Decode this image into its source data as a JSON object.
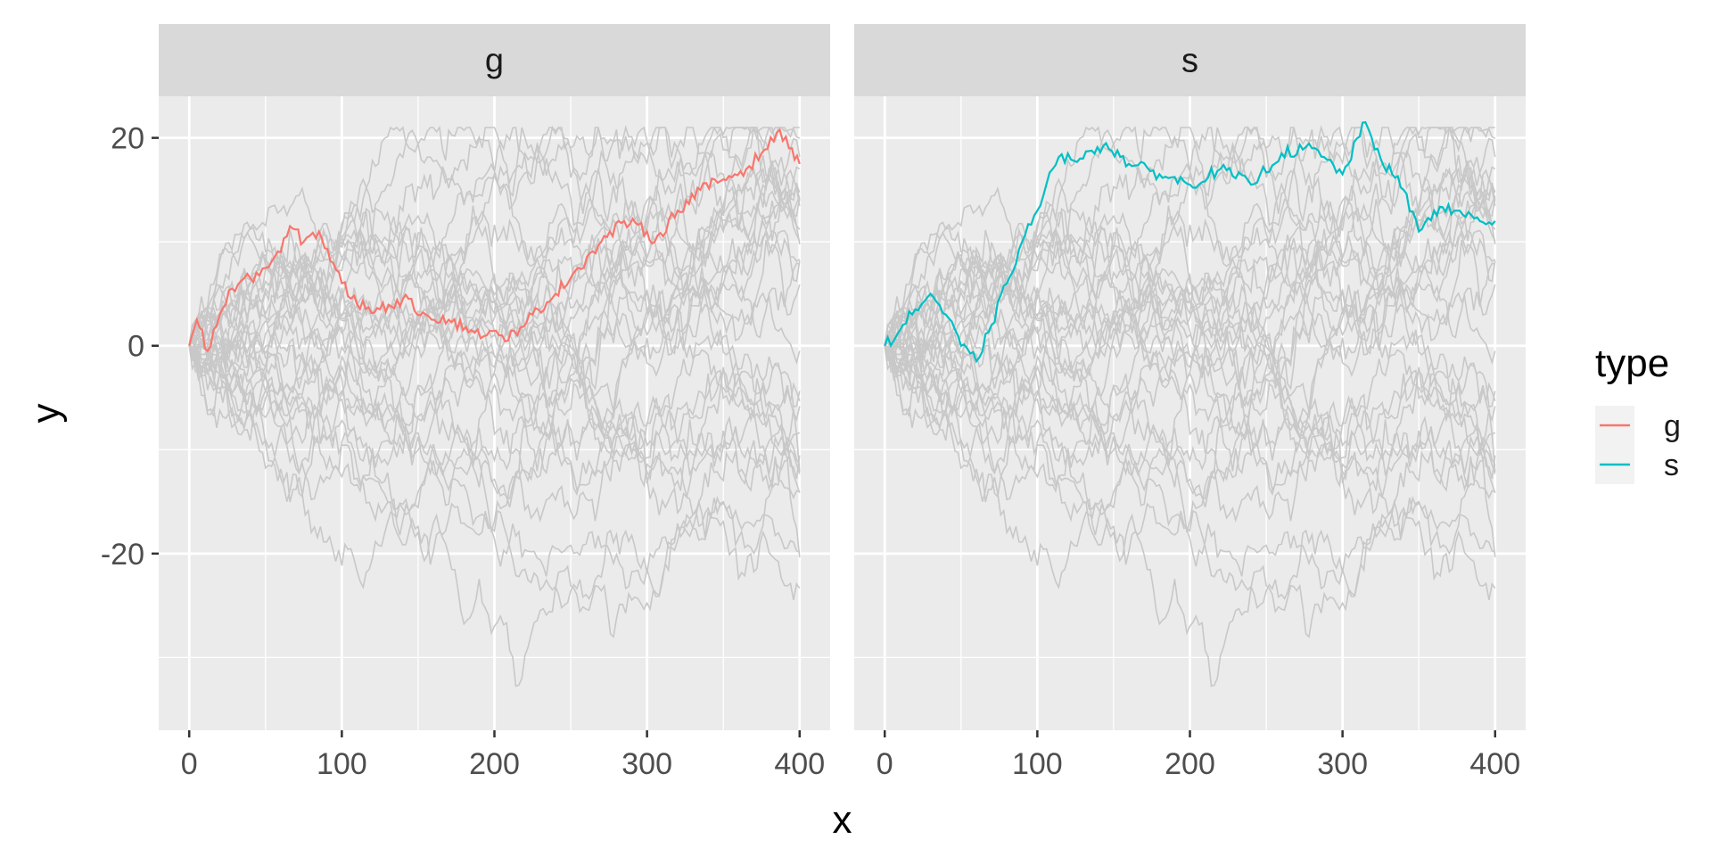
{
  "chart_data": {
    "type": "line",
    "facets": [
      "g",
      "s"
    ],
    "xlabel": "x",
    "ylabel": "y",
    "x_ticks": [
      0,
      100,
      200,
      300,
      400
    ],
    "y_ticks": [
      -20,
      0,
      20
    ],
    "xlim": [
      -20,
      420
    ],
    "ylim": [
      -37,
      24
    ],
    "background_series_color": "#c8c8c8",
    "background_series_count": 30,
    "background_series_note": "thirty unlabeled random-walk paths in light grey, the same set repeated in both panels",
    "series": [
      {
        "name": "g",
        "facet": "g",
        "color": "#F8766D",
        "points": [
          [
            0,
            0
          ],
          [
            5,
            2.5
          ],
          [
            12,
            -0.5
          ],
          [
            20,
            3
          ],
          [
            28,
            5.5
          ],
          [
            40,
            6.5
          ],
          [
            50,
            7.5
          ],
          [
            60,
            9
          ],
          [
            66,
            11.5
          ],
          [
            75,
            10
          ],
          [
            85,
            11
          ],
          [
            100,
            6
          ],
          [
            110,
            4
          ],
          [
            125,
            3.5
          ],
          [
            140,
            4.5
          ],
          [
            155,
            3
          ],
          [
            170,
            2.5
          ],
          [
            185,
            1.5
          ],
          [
            195,
            1
          ],
          [
            205,
            1
          ],
          [
            215,
            1
          ],
          [
            225,
            3
          ],
          [
            240,
            5
          ],
          [
            255,
            7.5
          ],
          [
            270,
            10
          ],
          [
            285,
            12
          ],
          [
            300,
            11
          ],
          [
            305,
            10
          ],
          [
            320,
            13
          ],
          [
            335,
            15
          ],
          [
            350,
            16
          ],
          [
            365,
            17
          ],
          [
            375,
            18.5
          ],
          [
            385,
            20.5
          ],
          [
            395,
            19
          ],
          [
            400,
            17.5
          ]
        ]
      },
      {
        "name": "s",
        "facet": "s",
        "color": "#00BFC4",
        "points": [
          [
            0,
            0
          ],
          [
            10,
            1.5
          ],
          [
            20,
            3.5
          ],
          [
            30,
            5
          ],
          [
            40,
            3
          ],
          [
            50,
            0
          ],
          [
            60,
            -1.5
          ],
          [
            70,
            2
          ],
          [
            80,
            6
          ],
          [
            90,
            10
          ],
          [
            100,
            13
          ],
          [
            110,
            17
          ],
          [
            120,
            18.5
          ],
          [
            130,
            18
          ],
          [
            145,
            19.5
          ],
          [
            160,
            17.5
          ],
          [
            180,
            16.5
          ],
          [
            200,
            15.5
          ],
          [
            220,
            17
          ],
          [
            240,
            15.5
          ],
          [
            260,
            18.5
          ],
          [
            280,
            19
          ],
          [
            300,
            16.5
          ],
          [
            315,
            21.5
          ],
          [
            325,
            18
          ],
          [
            340,
            15
          ],
          [
            350,
            11
          ],
          [
            360,
            13
          ],
          [
            375,
            13
          ],
          [
            390,
            12
          ],
          [
            400,
            12
          ]
        ]
      }
    ],
    "legend": {
      "title": "type",
      "position": "right",
      "entries": [
        {
          "label": "g",
          "color": "#F8766D"
        },
        {
          "label": "s",
          "color": "#00BFC4"
        }
      ]
    },
    "grid": true,
    "panel_background": "#ebebeb",
    "strip_background": "#d9d9d9"
  }
}
